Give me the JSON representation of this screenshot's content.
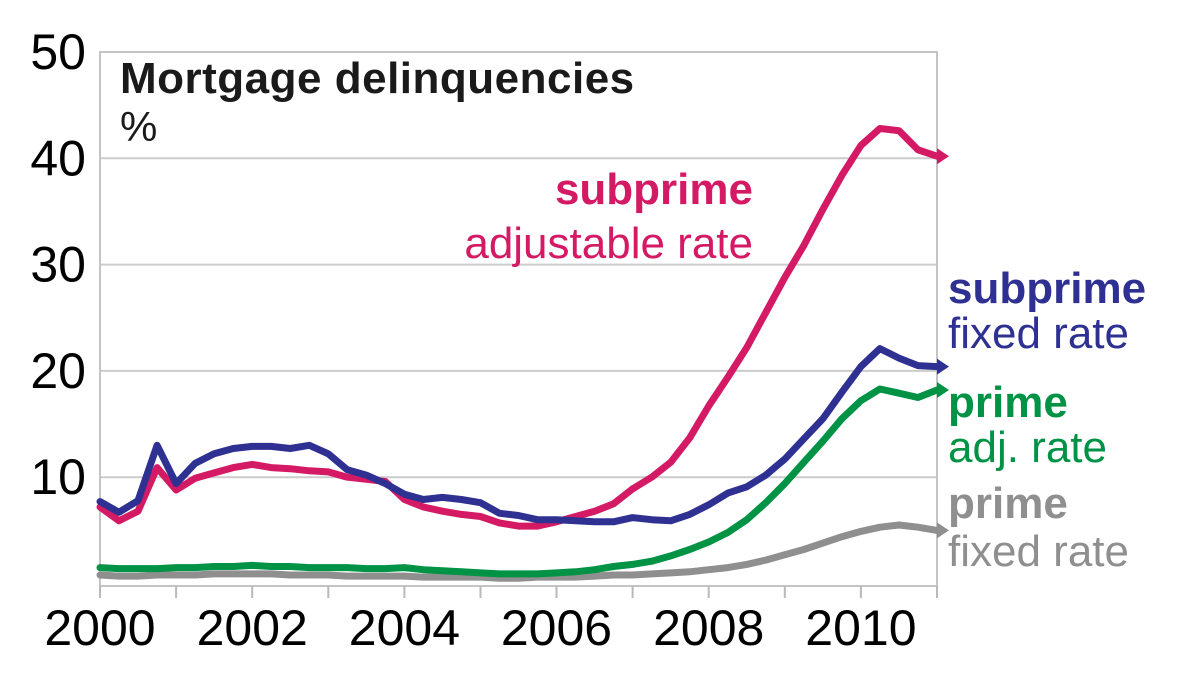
{
  "header": {
    "title": "Mortgage delinquencies",
    "units_label": "%"
  },
  "colors": {
    "subprime_arm": "#d41a64",
    "subprime_frm": "#2e3192",
    "prime_arm": "#009245",
    "prime_frm": "#8f8f8f",
    "gridline": "#cccccc",
    "text": "#000000"
  },
  "annotations": {
    "subprime_arm": {
      "line1": "subprime",
      "line2": "adjustable rate"
    },
    "subprime_frm": {
      "line1": "subprime",
      "line2": "fixed rate"
    },
    "prime_arm": {
      "line1": "prime",
      "line2": "adj. rate"
    },
    "prime_frm": {
      "line1": "prime",
      "line2": "fixed rate"
    }
  },
  "chart_data": {
    "type": "line",
    "title": "Mortgage delinquencies",
    "ylabel": "%",
    "xlabel": "",
    "grid": "horizontal",
    "legend_position": "annotated-right",
    "xlim": [
      2000,
      2011
    ],
    "ylim": [
      0,
      50
    ],
    "x_start": 2000.0,
    "x_step": 0.25,
    "x_unit": "year (quarterly data)",
    "xticks": [
      2000,
      2001,
      2002,
      2003,
      2004,
      2005,
      2006,
      2007,
      2008,
      2009,
      2010,
      2011
    ],
    "xtick_label_years": [
      2000,
      2002,
      2004,
      2006,
      2008,
      2010
    ],
    "yticks": [
      10,
      20,
      30,
      40,
      50
    ],
    "series": [
      {
        "id": "prime_frm",
        "name": "prime fixed rate",
        "color": "#8f8f8f",
        "values": [
          0.8,
          0.7,
          0.7,
          0.8,
          0.8,
          0.8,
          0.9,
          0.9,
          0.9,
          0.9,
          0.8,
          0.8,
          0.8,
          0.7,
          0.7,
          0.7,
          0.7,
          0.6,
          0.6,
          0.6,
          0.6,
          0.5,
          0.5,
          0.6,
          0.6,
          0.6,
          0.7,
          0.8,
          0.8,
          0.9,
          1.0,
          1.1,
          1.3,
          1.5,
          1.8,
          2.2,
          2.7,
          3.2,
          3.8,
          4.4,
          4.9,
          5.3,
          5.5,
          5.3,
          5.0
        ]
      },
      {
        "id": "prime_arm",
        "name": "prime adjustable rate",
        "color": "#009245",
        "values": [
          1.5,
          1.4,
          1.4,
          1.4,
          1.5,
          1.5,
          1.6,
          1.6,
          1.7,
          1.6,
          1.6,
          1.5,
          1.5,
          1.5,
          1.4,
          1.4,
          1.5,
          1.3,
          1.2,
          1.1,
          1.0,
          0.9,
          0.9,
          0.9,
          1.0,
          1.1,
          1.3,
          1.6,
          1.8,
          2.1,
          2.6,
          3.2,
          3.9,
          4.8,
          6.0,
          7.6,
          9.4,
          11.4,
          13.4,
          15.5,
          17.2,
          18.3,
          17.9,
          17.5,
          18.2
        ]
      },
      {
        "id": "subprime_arm",
        "name": "subprime adjustable rate",
        "color": "#d41a64",
        "values": [
          7.2,
          5.9,
          6.8,
          10.9,
          8.8,
          9.9,
          10.4,
          10.9,
          11.2,
          10.9,
          10.8,
          10.6,
          10.5,
          10.0,
          9.8,
          9.6,
          7.9,
          7.2,
          6.8,
          6.5,
          6.3,
          5.7,
          5.4,
          5.4,
          5.8,
          6.3,
          6.8,
          7.5,
          8.9,
          10.0,
          11.4,
          13.7,
          16.7,
          19.4,
          22.2,
          25.5,
          28.8,
          31.8,
          35.2,
          38.4,
          41.2,
          42.8,
          42.6,
          40.8,
          40.2
        ]
      },
      {
        "id": "subprime_frm",
        "name": "subprime fixed rate",
        "color": "#2e3192",
        "values": [
          7.7,
          6.7,
          7.8,
          13.0,
          9.4,
          11.3,
          12.2,
          12.7,
          12.9,
          12.9,
          12.7,
          13.0,
          12.2,
          10.7,
          10.2,
          9.4,
          8.4,
          7.9,
          8.1,
          7.9,
          7.6,
          6.6,
          6.4,
          6.0,
          6.0,
          5.9,
          5.8,
          5.8,
          6.2,
          6.0,
          5.9,
          6.5,
          7.4,
          8.5,
          9.1,
          10.2,
          11.7,
          13.6,
          15.5,
          18.0,
          20.4,
          22.1,
          21.2,
          20.5,
          20.4
        ]
      }
    ]
  }
}
